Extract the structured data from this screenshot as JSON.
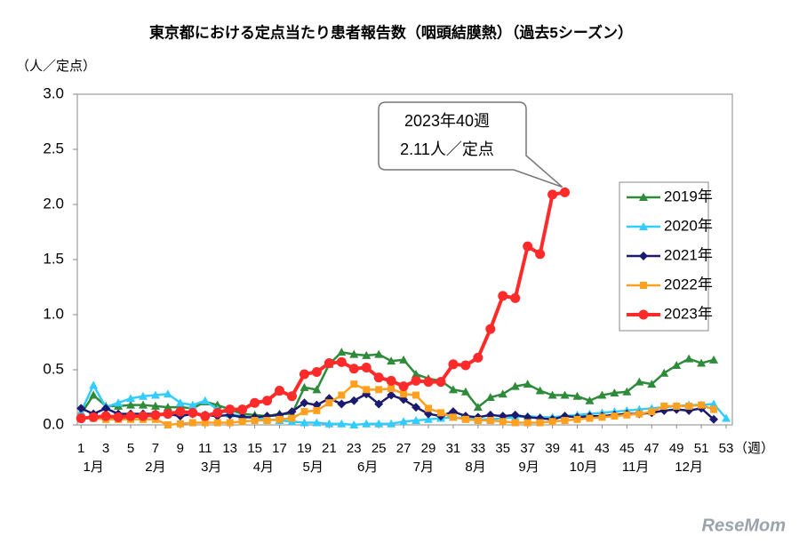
{
  "chart_data": {
    "type": "line",
    "title": "東京都における定点当たり患者報告数（咽頭結膜熱）（過去5シーズン）",
    "y_label": "（人／定点）",
    "x_label": "（週）",
    "x": [
      1,
      2,
      3,
      4,
      5,
      6,
      7,
      8,
      9,
      10,
      11,
      12,
      13,
      14,
      15,
      16,
      17,
      18,
      19,
      20,
      21,
      22,
      23,
      24,
      25,
      26,
      27,
      28,
      29,
      30,
      31,
      32,
      33,
      34,
      35,
      36,
      37,
      38,
      39,
      40,
      41,
      42,
      43,
      44,
      45,
      46,
      47,
      48,
      49,
      50,
      51,
      52,
      53
    ],
    "xlim": [
      0.7,
      53.5
    ],
    "xticks": [
      1,
      3,
      5,
      7,
      9,
      11,
      13,
      15,
      17,
      19,
      21,
      23,
      25,
      27,
      29,
      31,
      33,
      35,
      37,
      39,
      41,
      43,
      45,
      47,
      49,
      51,
      53
    ],
    "month_ticks": [
      {
        "value": 2,
        "label": "1月"
      },
      {
        "value": 7,
        "label": "2月"
      },
      {
        "value": 11.5,
        "label": "3月"
      },
      {
        "value": 15.7,
        "label": "4月"
      },
      {
        "value": 19.7,
        "label": "5月"
      },
      {
        "value": 24.1,
        "label": "6月"
      },
      {
        "value": 28.6,
        "label": "7月"
      },
      {
        "value": 32.8,
        "label": "8月"
      },
      {
        "value": 37.1,
        "label": "9月"
      },
      {
        "value": 41.5,
        "label": "10月"
      },
      {
        "value": 45.7,
        "label": "11月"
      },
      {
        "value": 50,
        "label": "12月"
      }
    ],
    "ylim": [
      0,
      3
    ],
    "yticks": [
      {
        "value": 0,
        "label": "0.0"
      },
      {
        "value": 0.5,
        "label": "0.5"
      },
      {
        "value": 1,
        "label": "1.0"
      },
      {
        "value": 1.5,
        "label": "1.5"
      },
      {
        "value": 2,
        "label": "2.0"
      },
      {
        "value": 2.5,
        "label": "2.5"
      },
      {
        "value": 3,
        "label": "3.0"
      }
    ],
    "grid": false,
    "legend": "right",
    "series": [
      {
        "name": "2019年",
        "color": "#2e8b3a",
        "marker": "triangle",
        "values": [
          0.1,
          0.27,
          0.17,
          0.17,
          0.18,
          0.18,
          0.17,
          0.16,
          0.16,
          0.15,
          0.21,
          0.18,
          0.14,
          0.1,
          0.09,
          0.08,
          0.1,
          0.1,
          0.34,
          0.32,
          0.55,
          0.66,
          0.64,
          0.63,
          0.64,
          0.58,
          0.59,
          0.46,
          0.42,
          0.4,
          0.32,
          0.3,
          0.16,
          0.25,
          0.28,
          0.35,
          0.37,
          0.31,
          0.27,
          0.27,
          0.26,
          0.22,
          0.27,
          0.29,
          0.3,
          0.39,
          0.37,
          0.47,
          0.54,
          0.6,
          0.56,
          0.59,
          null
        ]
      },
      {
        "name": "2020年",
        "color": "#33ccff",
        "marker": "triangle",
        "values": [
          0.12,
          0.36,
          0.16,
          0.2,
          0.24,
          0.26,
          0.27,
          0.28,
          0.2,
          0.18,
          0.22,
          0.14,
          0.1,
          0.08,
          0.06,
          0.05,
          0.04,
          0.03,
          0.02,
          0.02,
          0.01,
          0.01,
          0,
          0.01,
          0.01,
          0.01,
          0.03,
          0.04,
          0.05,
          0.06,
          0.07,
          0.06,
          0.05,
          0.05,
          0.06,
          0.07,
          0.08,
          0.07,
          0.07,
          0.08,
          0.09,
          0.1,
          0.11,
          0.12,
          0.13,
          0.14,
          0.15,
          0.16,
          0.17,
          0.18,
          0.18,
          0.19,
          0.06
        ]
      },
      {
        "name": "2021年",
        "color": "#1a1a6e",
        "marker": "diamond",
        "values": [
          0.15,
          0.1,
          0.15,
          0.1,
          0.1,
          0.1,
          0.1,
          0.1,
          0.08,
          0.1,
          0.09,
          0.08,
          0.09,
          0.07,
          0.07,
          0.08,
          0.09,
          0.12,
          0.2,
          0.18,
          0.24,
          0.19,
          0.22,
          0.28,
          0.19,
          0.27,
          0.23,
          0.16,
          0.1,
          0.08,
          0.12,
          0.08,
          0.07,
          0.09,
          0.08,
          0.09,
          0.07,
          0.06,
          0.05,
          0.08,
          0.07,
          0.08,
          0.08,
          0.09,
          0.1,
          0.1,
          0.11,
          0.13,
          0.14,
          0.13,
          0.15,
          0.05,
          null
        ]
      },
      {
        "name": "2022年",
        "color": "#ffa020",
        "marker": "square",
        "values": [
          0.07,
          0.06,
          0.05,
          0.05,
          0.05,
          0.05,
          0.05,
          0,
          0.01,
          0.02,
          0.02,
          0.02,
          0.02,
          0.03,
          0.04,
          0.04,
          0.05,
          0.06,
          0.12,
          0.13,
          0.2,
          0.27,
          0.37,
          0.32,
          0.32,
          0.33,
          0.28,
          0.27,
          0.15,
          0.11,
          0.07,
          0.05,
          0.04,
          0.04,
          0.03,
          0.02,
          0.02,
          0.02,
          0.03,
          0.04,
          0.05,
          0.06,
          0.07,
          0.08,
          0.09,
          0.1,
          0.12,
          0.17,
          0.17,
          0.17,
          0.18,
          0.14,
          null
        ]
      },
      {
        "name": "2023年",
        "color": "#ff2a2a",
        "marker": "circle",
        "values": [
          0.06,
          0.07,
          0.08,
          0.07,
          0.08,
          0.08,
          0.09,
          0.1,
          0.12,
          0.11,
          0.08,
          0.11,
          0.14,
          0.14,
          0.2,
          0.22,
          0.31,
          0.26,
          0.46,
          0.48,
          0.56,
          0.57,
          0.51,
          0.52,
          0.43,
          0.4,
          0.35,
          0.4,
          0.39,
          0.39,
          0.55,
          0.54,
          0.61,
          0.87,
          1.17,
          1.15,
          1.62,
          1.55,
          2.09,
          2.11,
          null,
          null,
          null,
          null,
          null,
          null,
          null,
          null,
          null,
          null,
          null,
          null,
          null
        ]
      }
    ],
    "annotation": {
      "lines": [
        "2023年40週",
        "2.11人／定点"
      ]
    },
    "watermark": "ReseMom"
  }
}
